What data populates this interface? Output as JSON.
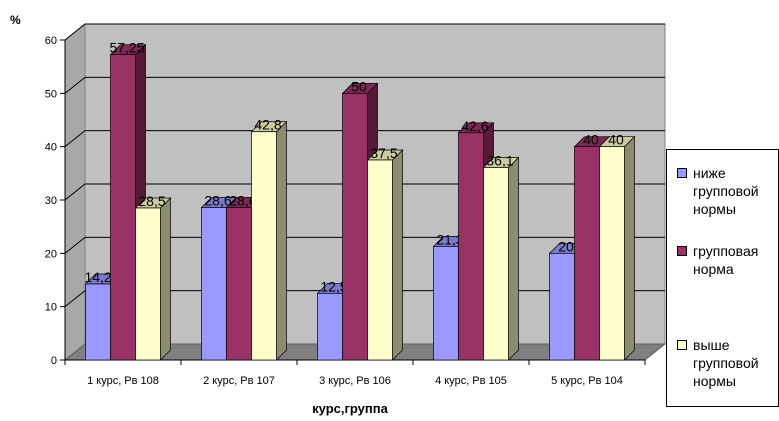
{
  "chart_data": {
    "type": "bar",
    "ylabel": "%",
    "xlabel": "курс,группа",
    "ylim": [
      0,
      60
    ],
    "yticks": [
      0,
      10,
      20,
      30,
      40,
      50,
      60
    ],
    "grid": true,
    "legend_position": "right",
    "categories": [
      "1 курс, Рв 108",
      "2 курс, Рв 107",
      "3 курс, Рв 106",
      "4 курс, Рв 105",
      "5 курс, Рв 104"
    ],
    "series": [
      {
        "name": "ниже групповой нормы",
        "color": "#9999ff",
        "values": [
          14.25,
          28.6,
          12.5,
          21.3,
          20
        ],
        "labels": [
          "14,25",
          "28,6",
          "12,5",
          "21,3",
          "20"
        ]
      },
      {
        "name": "групповая норма",
        "color": "#993366",
        "values": [
          57.25,
          28.6,
          50,
          42.6,
          40
        ],
        "labels": [
          "57,25",
          "28,6",
          "50",
          "42,6",
          "40"
        ]
      },
      {
        "name": "выше групповой нормы",
        "color": "#ffffcc",
        "values": [
          28.5,
          42.8,
          37.5,
          36.1,
          40
        ],
        "labels": [
          "28,5",
          "42,8",
          "37,5",
          "36,1",
          "40"
        ]
      }
    ]
  },
  "legend_items": [
    {
      "lines": [
        "ниже",
        "групповой",
        "нормы"
      ]
    },
    {
      "lines": [
        "групповая",
        "норма"
      ]
    },
    {
      "lines": [
        "выше",
        "групповой",
        "нормы"
      ]
    }
  ]
}
